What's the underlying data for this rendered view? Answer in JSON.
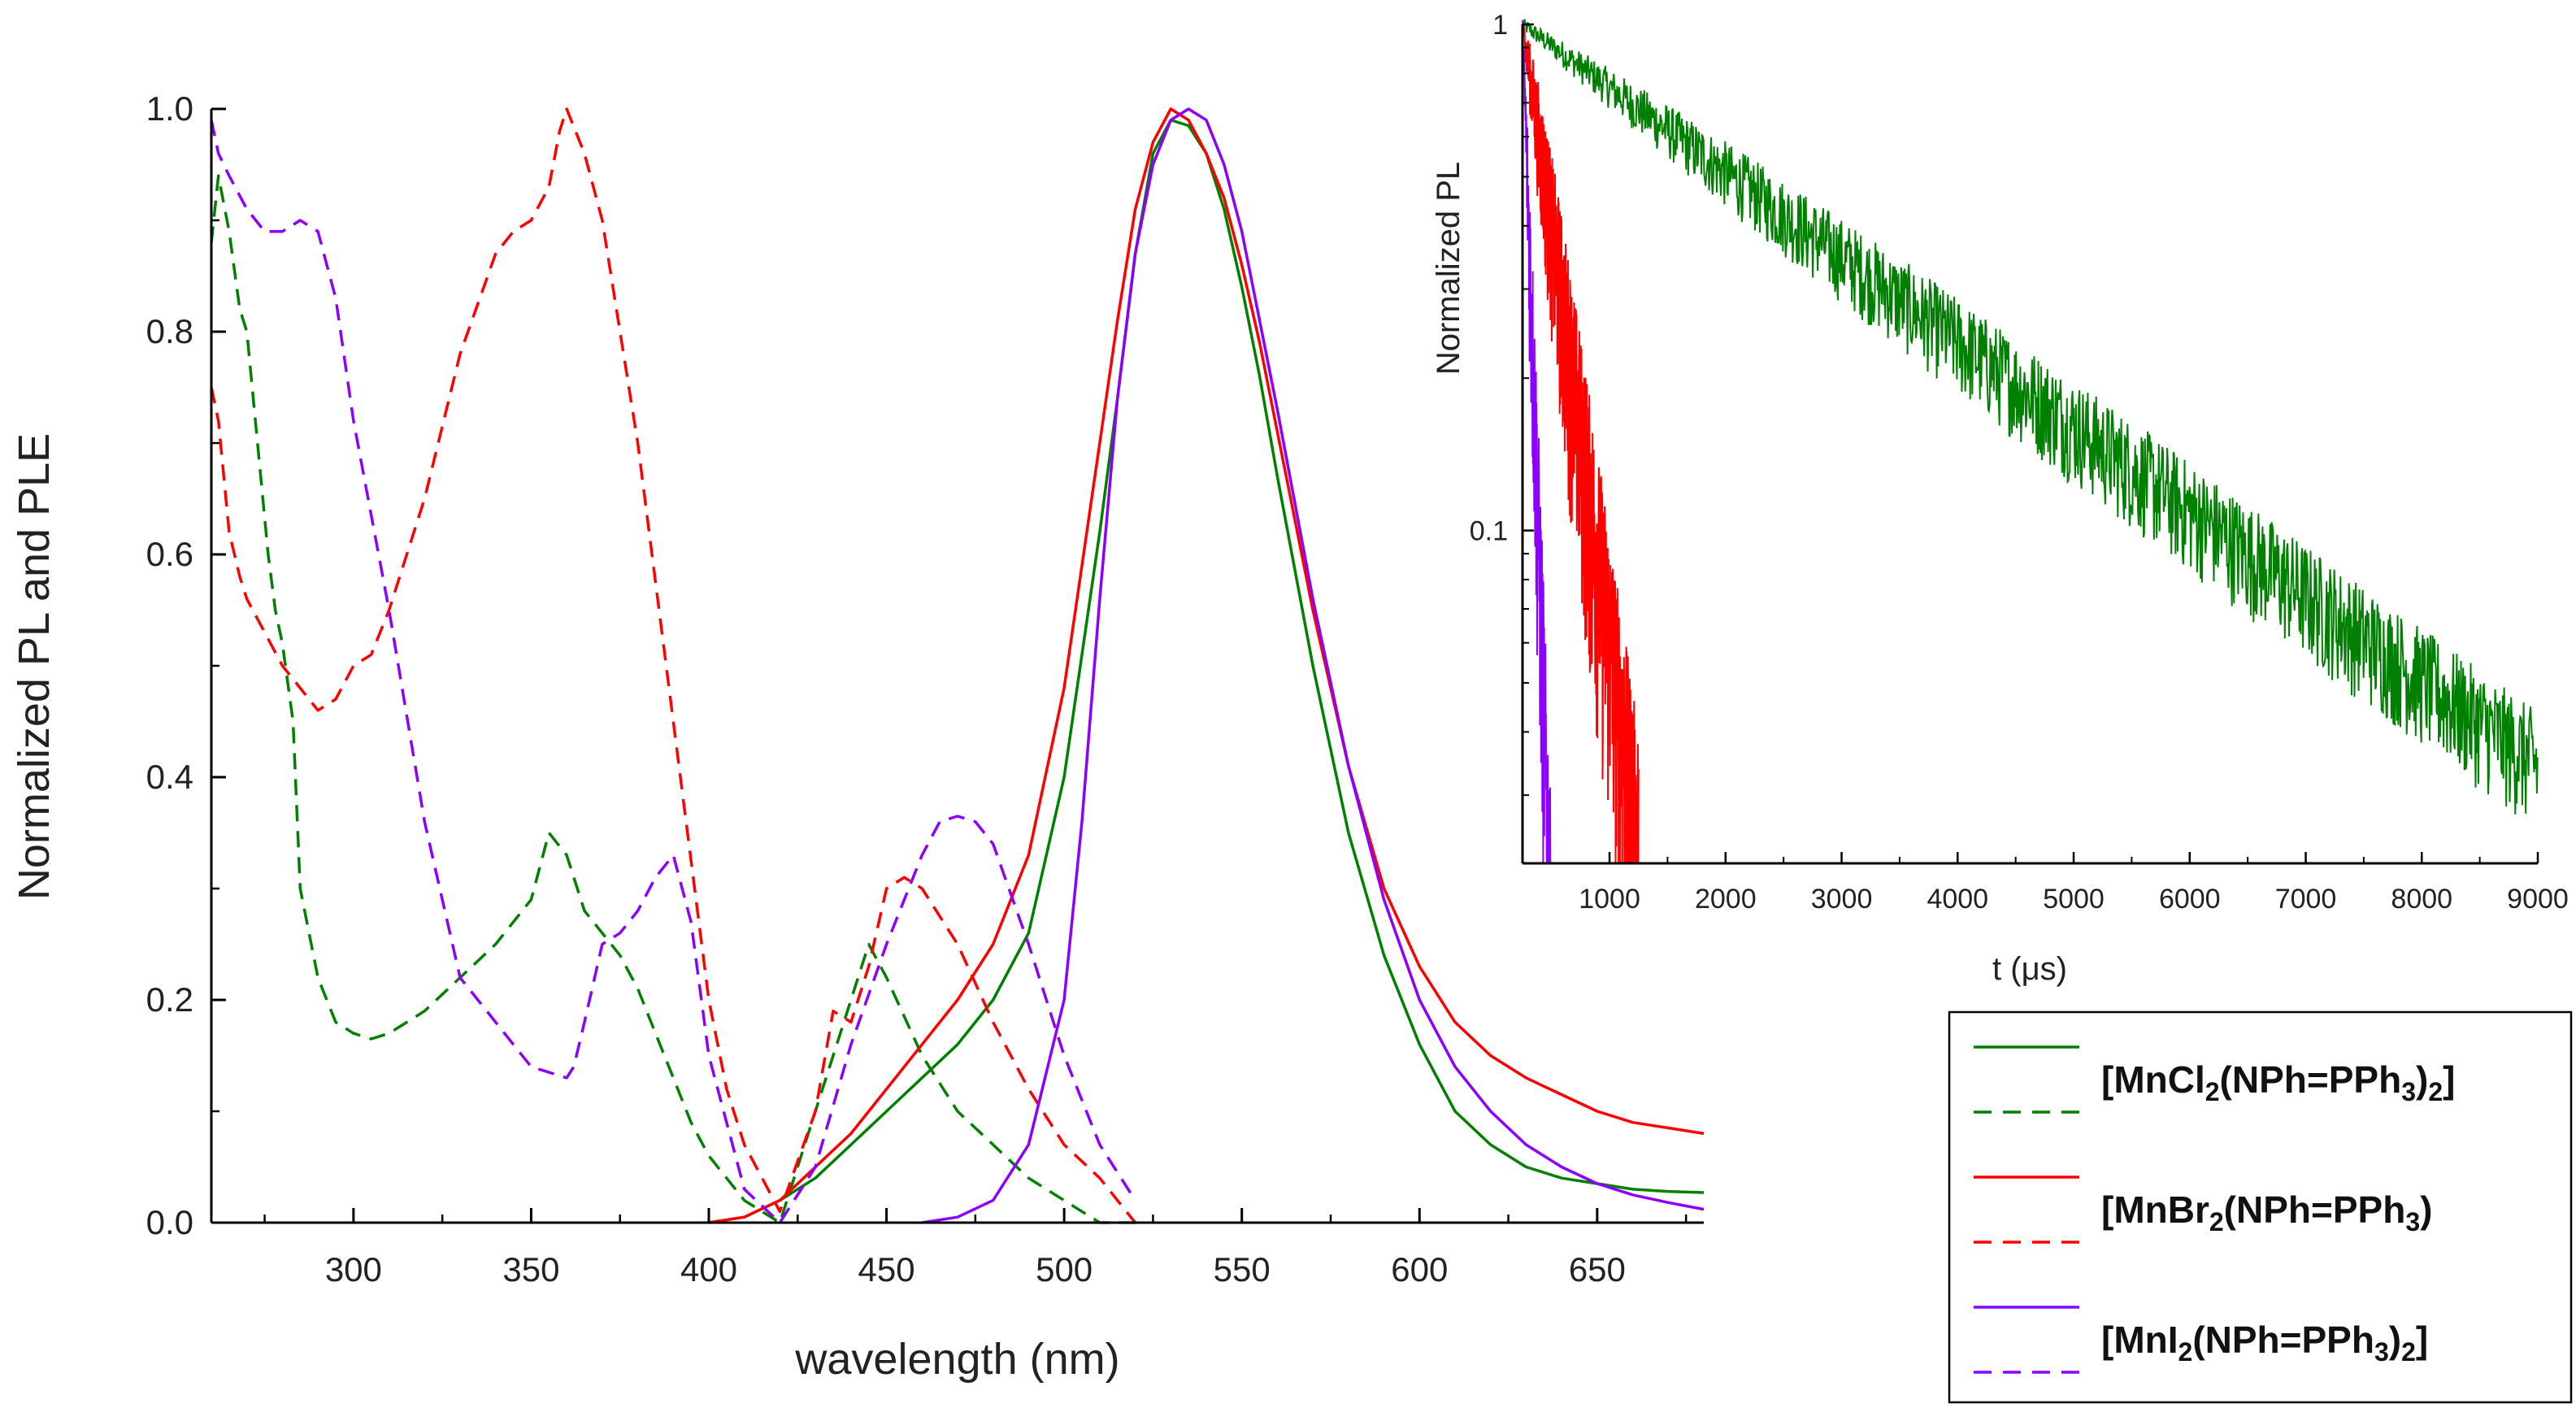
{
  "chart_data": [
    {
      "type": "line",
      "title": "",
      "xlabel": "wavelength (nm)",
      "ylabel": "Normalized PL and PLE",
      "xlim": [
        260,
        680
      ],
      "ylim": [
        0,
        1.0
      ],
      "xticks": [
        300,
        350,
        400,
        450,
        500,
        550,
        600,
        650
      ],
      "yticks": [
        0.0,
        0.2,
        0.4,
        0.6,
        0.8,
        1.0
      ],
      "xtick_labels": [
        "300",
        "350",
        "400",
        "450",
        "500",
        "550",
        "600",
        "650"
      ],
      "ytick_labels": [
        "0.0",
        "0.2",
        "0.4",
        "0.6",
        "0.8",
        "1.0"
      ],
      "series": [
        {
          "name": "[MnCl2(NPh=PPh3)2] PL",
          "color": "#008000",
          "dash": "solid",
          "x": [
            400,
            410,
            420,
            430,
            440,
            450,
            460,
            470,
            480,
            490,
            500,
            510,
            515,
            520,
            525,
            530,
            535,
            540,
            545,
            550,
            555,
            560,
            570,
            580,
            590,
            600,
            610,
            620,
            630,
            640,
            650,
            660,
            670,
            680
          ],
          "y": [
            0.0,
            0.005,
            0.02,
            0.04,
            0.07,
            0.1,
            0.13,
            0.16,
            0.2,
            0.26,
            0.4,
            0.62,
            0.74,
            0.87,
            0.96,
            0.99,
            0.985,
            0.96,
            0.91,
            0.84,
            0.76,
            0.67,
            0.5,
            0.35,
            0.24,
            0.16,
            0.1,
            0.07,
            0.05,
            0.04,
            0.035,
            0.03,
            0.028,
            0.027
          ]
        },
        {
          "name": "[MnCl2(NPh=PPh3)2] PLE",
          "color": "#008000",
          "dash": "dashed",
          "x": [
            260,
            262,
            265,
            268,
            270,
            273,
            276,
            278,
            280,
            283,
            285,
            290,
            295,
            300,
            305,
            310,
            320,
            330,
            340,
            350,
            355,
            360,
            365,
            370,
            375,
            380,
            385,
            390,
            395,
            400,
            410,
            420,
            430,
            435,
            440,
            445,
            450,
            460,
            470,
            480,
            490,
            500,
            510,
            520
          ],
          "y": [
            0.88,
            0.94,
            0.89,
            0.82,
            0.8,
            0.7,
            0.6,
            0.55,
            0.52,
            0.45,
            0.3,
            0.22,
            0.18,
            0.17,
            0.165,
            0.17,
            0.19,
            0.22,
            0.25,
            0.29,
            0.35,
            0.33,
            0.28,
            0.26,
            0.24,
            0.21,
            0.17,
            0.13,
            0.09,
            0.06,
            0.02,
            0.0,
            0.1,
            0.15,
            0.2,
            0.25,
            0.22,
            0.15,
            0.1,
            0.07,
            0.04,
            0.02,
            0.0,
            0.0
          ]
        },
        {
          "name": "[MnBr2(NPh=PPh3) PL",
          "color": "#ff0000",
          "dash": "solid",
          "x": [
            400,
            410,
            420,
            430,
            440,
            450,
            460,
            470,
            480,
            490,
            500,
            510,
            515,
            520,
            525,
            530,
            535,
            540,
            545,
            550,
            555,
            560,
            570,
            580,
            590,
            600,
            610,
            620,
            630,
            640,
            650,
            660,
            670,
            680
          ],
          "y": [
            0.0,
            0.005,
            0.02,
            0.05,
            0.08,
            0.12,
            0.16,
            0.2,
            0.25,
            0.33,
            0.48,
            0.7,
            0.81,
            0.91,
            0.97,
            1.0,
            0.99,
            0.96,
            0.92,
            0.86,
            0.79,
            0.71,
            0.55,
            0.41,
            0.3,
            0.23,
            0.18,
            0.15,
            0.13,
            0.115,
            0.1,
            0.09,
            0.085,
            0.08
          ]
        },
        {
          "name": "[MnBr2(NPh=PPh3) PLE",
          "color": "#ff0000",
          "dash": "dashed",
          "x": [
            260,
            262,
            265,
            268,
            270,
            275,
            280,
            285,
            290,
            295,
            300,
            305,
            310,
            320,
            330,
            340,
            345,
            350,
            355,
            358,
            360,
            365,
            370,
            380,
            390,
            400,
            405,
            410,
            420,
            430,
            435,
            440,
            445,
            450,
            455,
            460,
            470,
            480,
            490,
            500,
            510,
            515,
            520
          ],
          "y": [
            0.75,
            0.72,
            0.62,
            0.58,
            0.56,
            0.53,
            0.5,
            0.48,
            0.46,
            0.47,
            0.5,
            0.51,
            0.55,
            0.65,
            0.78,
            0.87,
            0.89,
            0.9,
            0.93,
            0.98,
            1.0,
            0.96,
            0.9,
            0.7,
            0.45,
            0.2,
            0.12,
            0.07,
            0.01,
            0.1,
            0.19,
            0.18,
            0.23,
            0.3,
            0.31,
            0.3,
            0.25,
            0.18,
            0.12,
            0.07,
            0.04,
            0.02,
            0.0
          ]
        },
        {
          "name": "[MnI2(NPh=PPh3)2] PL",
          "color": "#8b00ff",
          "dash": "solid",
          "x": [
            460,
            470,
            480,
            490,
            500,
            505,
            510,
            515,
            520,
            525,
            530,
            535,
            540,
            545,
            550,
            555,
            560,
            570,
            580,
            590,
            600,
            610,
            620,
            630,
            640,
            650,
            660,
            670,
            680
          ],
          "y": [
            0.0,
            0.005,
            0.02,
            0.07,
            0.2,
            0.36,
            0.56,
            0.74,
            0.87,
            0.95,
            0.99,
            1.0,
            0.99,
            0.95,
            0.89,
            0.81,
            0.73,
            0.56,
            0.41,
            0.29,
            0.2,
            0.14,
            0.1,
            0.07,
            0.05,
            0.035,
            0.025,
            0.018,
            0.012
          ]
        },
        {
          "name": "[MnI2(NPh=PPh3)2] PLE",
          "color": "#8b00ff",
          "dash": "dashed",
          "x": [
            260,
            262,
            265,
            270,
            275,
            280,
            285,
            290,
            295,
            300,
            310,
            320,
            330,
            340,
            350,
            360,
            362,
            365,
            370,
            375,
            380,
            385,
            390,
            395,
            400,
            410,
            420,
            430,
            440,
            450,
            460,
            465,
            470,
            475,
            480,
            490,
            500,
            510,
            520
          ],
          "y": [
            0.99,
            0.96,
            0.94,
            0.91,
            0.89,
            0.89,
            0.9,
            0.89,
            0.83,
            0.72,
            0.55,
            0.36,
            0.22,
            0.18,
            0.14,
            0.13,
            0.14,
            0.18,
            0.25,
            0.26,
            0.28,
            0.31,
            0.33,
            0.27,
            0.15,
            0.03,
            0.0,
            0.05,
            0.16,
            0.25,
            0.33,
            0.36,
            0.365,
            0.36,
            0.34,
            0.25,
            0.15,
            0.07,
            0.02
          ]
        }
      ]
    },
    {
      "type": "line",
      "title": "",
      "xlabel": "t (μs)",
      "ylabel": "Normalized PL",
      "yscale": "log",
      "xlim": [
        250,
        9000
      ],
      "ylim": [
        0.022,
        1
      ],
      "xticks": [
        1000,
        2000,
        3000,
        4000,
        5000,
        6000,
        7000,
        8000,
        9000
      ],
      "xtick_labels": [
        "1000",
        "2000",
        "3000",
        "4000",
        "5000",
        "6000",
        "7000",
        "8000",
        "9000"
      ],
      "ytick_labels": [
        "1",
        "0.1"
      ],
      "series": [
        {
          "name": "[MnCl2(NPh=PPh3)2]",
          "color": "#008000",
          "decay_tau_us": 2600,
          "x_end": 9000
        },
        {
          "name": "[MnBr2(NPh=PPh3)",
          "color": "#ff0000",
          "decay_tau_us": 270,
          "x_end": 1250
        },
        {
          "name": "[MnI2(NPh=PPh3)2]",
          "color": "#8b00ff",
          "decay_tau_us": 60,
          "x_end": 500
        }
      ]
    }
  ],
  "legend": {
    "items": [
      {
        "label": "[MnCl",
        "sub1": "2",
        "mid": "(NPh=PPh",
        "sub2": "3",
        "end": ")",
        "sub3": "2",
        "tail": "]",
        "color": "#008000"
      },
      {
        "label": "[MnBr",
        "sub1": "2",
        "mid": "(NPh=PPh",
        "sub2": "3",
        "end": ")",
        "sub3": "",
        "tail": "",
        "color": "#ff0000"
      },
      {
        "label": "[MnI",
        "sub1": "2",
        "mid": "(NPh=PPh",
        "sub2": "3",
        "end": ")",
        "sub3": "2",
        "tail": "]",
        "color": "#8b00ff"
      }
    ]
  }
}
